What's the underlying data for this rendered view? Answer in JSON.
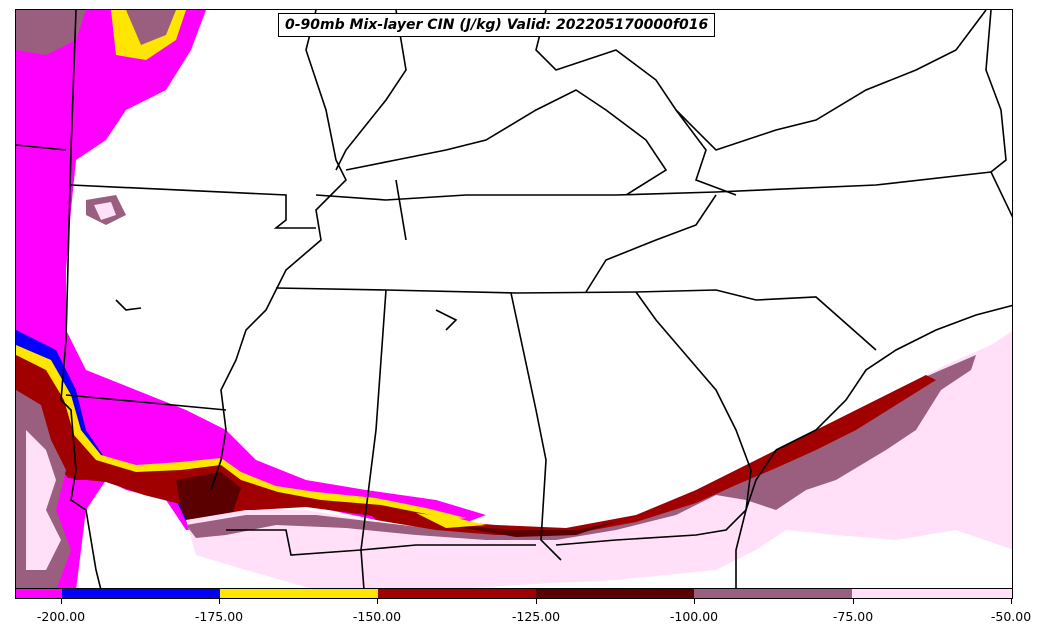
{
  "title": "0-90mb Mix-layer CIN (J/kg) Valid: 202205170000f016",
  "colorbar": {
    "ticks": [
      "-200.00",
      "-175.00",
      "-150.00",
      "-125.00",
      "-100.00",
      "-75.00",
      "-50.00"
    ],
    "bins": [
      {
        "color": "#ff00ff"
      },
      {
        "color": "#0000ff"
      },
      {
        "color": "#ffe600"
      },
      {
        "color": "#a00000"
      },
      {
        "color": "#5a0000"
      },
      {
        "color": "#9a5f7f"
      },
      {
        "color": "#ffe0f8"
      }
    ]
  }
}
